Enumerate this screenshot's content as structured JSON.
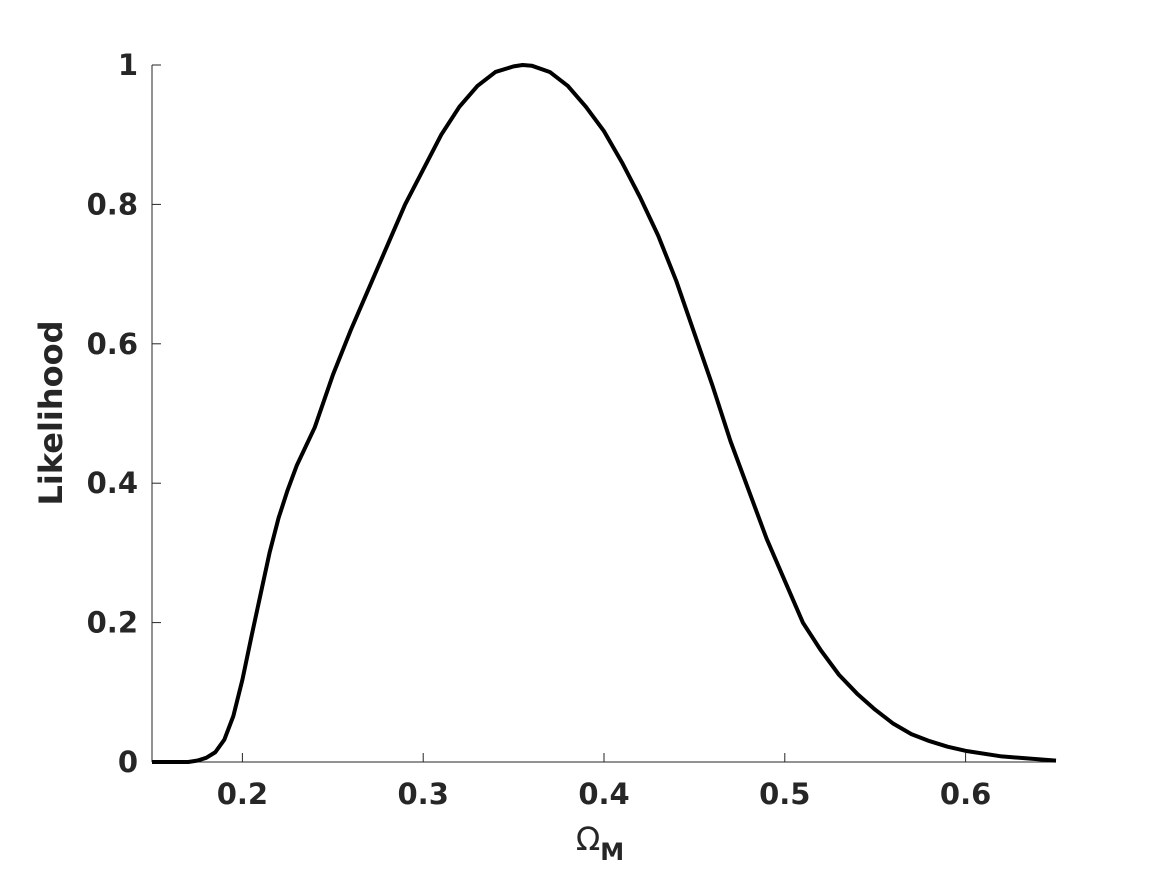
{
  "chart_data": {
    "type": "line",
    "xlabel": "Ω",
    "xlabel_subscript": "M",
    "ylabel": "Likelihood",
    "x": [
      0.15,
      0.17,
      0.175,
      0.18,
      0.185,
      0.19,
      0.195,
      0.2,
      0.205,
      0.21,
      0.215,
      0.22,
      0.225,
      0.23,
      0.24,
      0.25,
      0.26,
      0.27,
      0.28,
      0.29,
      0.3,
      0.31,
      0.32,
      0.33,
      0.34,
      0.35,
      0.355,
      0.36,
      0.37,
      0.38,
      0.39,
      0.4,
      0.41,
      0.42,
      0.43,
      0.44,
      0.45,
      0.46,
      0.47,
      0.48,
      0.49,
      0.5,
      0.51,
      0.52,
      0.53,
      0.54,
      0.55,
      0.56,
      0.57,
      0.58,
      0.59,
      0.6,
      0.62,
      0.65
    ],
    "series": [
      {
        "color": "#000000",
        "values": [
          0,
          0,
          0.002,
          0.006,
          0.014,
          0.032,
          0.066,
          0.118,
          0.18,
          0.24,
          0.3,
          0.35,
          0.39,
          0.425,
          0.48,
          0.555,
          0.62,
          0.68,
          0.74,
          0.8,
          0.85,
          0.9,
          0.94,
          0.97,
          0.99,
          0.998,
          1.0,
          0.999,
          0.99,
          0.97,
          0.94,
          0.905,
          0.86,
          0.81,
          0.755,
          0.69,
          0.615,
          0.54,
          0.46,
          0.39,
          0.32,
          0.26,
          0.2,
          0.16,
          0.125,
          0.098,
          0.075,
          0.055,
          0.04,
          0.03,
          0.022,
          0.016,
          0.008,
          0.002
        ]
      }
    ],
    "xlim": [
      0.15,
      0.65
    ],
    "ylim": [
      0,
      1
    ],
    "xticks": [
      0.2,
      0.3,
      0.4,
      0.5,
      0.6
    ],
    "yticks": [
      0,
      0.2,
      0.4,
      0.6,
      0.8,
      1
    ]
  }
}
